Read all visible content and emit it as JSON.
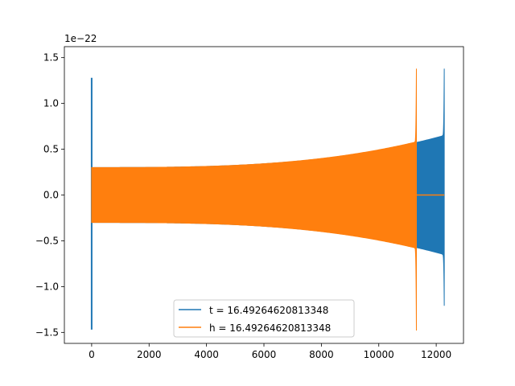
{
  "chart_data": {
    "type": "line",
    "title": "",
    "xlabel": "",
    "ylabel": "",
    "y_offset_label": "1e−22",
    "xlim": [
      -950,
      12950
    ],
    "ylim": [
      -1.62,
      1.62
    ],
    "x_ticks": [
      0,
      2000,
      4000,
      6000,
      8000,
      10000,
      12000
    ],
    "x_tick_labels": [
      "0",
      "2000",
      "4000",
      "6000",
      "8000",
      "10000",
      "12000"
    ],
    "y_ticks": [
      1.5,
      1.0,
      0.5,
      0.0,
      -0.5,
      -1.0,
      -1.5
    ],
    "y_tick_labels": [
      "1.5",
      "1.0",
      "0.5",
      "0.0",
      "−0.5",
      "−1.0",
      "−1.5"
    ],
    "grid": false,
    "legend_position": "lower-center",
    "series": [
      {
        "name": "t = 16.49264620813348",
        "color": "#1f77b4",
        "description": "damped chirp oscillation, spike at x=0 then growing envelope to merger",
        "x_end": 12280,
        "merger_x": 12280,
        "spike_at_zero": {
          "max": 1.28,
          "min": -1.47
        },
        "merger_peak": {
          "max": 1.38,
          "min": -1.21
        },
        "envelope_start": 0.3,
        "envelope_pre_merger": 0.65
      },
      {
        "name": "h = 16.49264620813348",
        "color": "#ff7f0e",
        "description": "chirp oscillation with growing envelope, merger earlier, then flat zero",
        "x_end": 12280,
        "merger_x": 11310,
        "merger_peak": {
          "max": 1.38,
          "min": -1.48
        },
        "envelope_start": 0.3,
        "envelope_pre_merger": 0.58,
        "after_merger_value": 0.0
      }
    ]
  }
}
